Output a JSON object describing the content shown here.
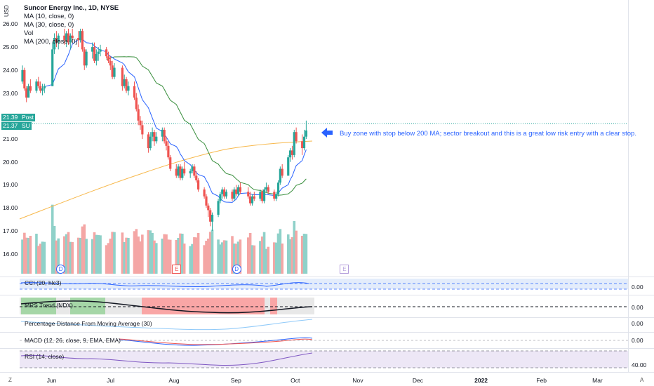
{
  "legend": {
    "title": "Suncor Energy Inc., 1D, NYSE",
    "lines": [
      "MA (10, close, 0)",
      "MA (30, close, 0)",
      "Vol",
      "MA (200, close, 0)"
    ]
  },
  "currency_label": "USD",
  "price_axis_ticks": [
    "26.00",
    "25.00",
    "24.00",
    "23.00",
    "22.00",
    "21.00",
    "20.00",
    "19.00",
    "18.00",
    "17.00",
    "16.00"
  ],
  "price_tags": [
    {
      "value": "21.39",
      "label": "Post",
      "color": "#26a69a"
    },
    {
      "value": "21.37",
      "label": "SU",
      "color": "#26a69a"
    }
  ],
  "time_axis_ticks": [
    "Jun",
    "Jul",
    "Aug",
    "Sep",
    "Oct",
    "Nov",
    "Dec",
    "2022",
    "Feb",
    "Mar"
  ],
  "event_markers": [
    "D",
    "E",
    "D",
    "E"
  ],
  "annotation": "Buy zone with stop below 200 MA; sector breakout and this is a great low risk entry with a clear stop.",
  "indicator_panes": [
    {
      "title": "CCI (20, hlc3)",
      "value": "0.00"
    },
    {
      "title": "MRS Trend (NDX)",
      "value": "0.00"
    },
    {
      "title": "Percentage Distance From Moving Average (30)",
      "value": "0.00"
    },
    {
      "title": "MACD (12, 26, close, 9, EMA, EMA)",
      "value": "0.00"
    },
    {
      "title": "RSI (14, close)",
      "value": "40.00"
    }
  ],
  "footer": {
    "left": "Z",
    "right": "A"
  },
  "colors": {
    "up": "#26a69a",
    "down": "#ef5350",
    "ma10": "#2962ff",
    "ma30": "#388e3c",
    "ma200": "#f7b84b",
    "accent": "#2962ff"
  },
  "chart_data": {
    "type": "candlestick",
    "title": "Suncor Energy Inc., 1D, NYSE",
    "ylim": [
      15.5,
      26.5
    ],
    "x_range": [
      "2021-05-17",
      "2022-03-15"
    ],
    "series": [
      {
        "name": "Price",
        "ohlc": [
          [
            "2021-05-17",
            23.5,
            24.2,
            23.4,
            24.0
          ],
          [
            "2021-05-18",
            24.0,
            24.1,
            23.1,
            23.2
          ],
          [
            "2021-05-19",
            23.2,
            23.3,
            22.6,
            22.8
          ],
          [
            "2021-05-20",
            22.8,
            23.4,
            22.8,
            23.3
          ],
          [
            "2021-05-21",
            23.3,
            23.6,
            23.0,
            23.1
          ],
          [
            "2021-05-24",
            23.1,
            23.6,
            23.0,
            23.5
          ],
          [
            "2021-05-25",
            23.5,
            23.7,
            23.2,
            23.3
          ],
          [
            "2021-05-26",
            23.3,
            23.5,
            23.0,
            23.1
          ],
          [
            "2021-05-27",
            23.1,
            23.4,
            22.9,
            23.2
          ],
          [
            "2021-05-28",
            23.2,
            23.4,
            23.0,
            23.3
          ],
          [
            "2021-06-01",
            23.3,
            25.2,
            23.3,
            24.9
          ],
          [
            "2021-06-02",
            24.9,
            25.6,
            24.7,
            25.4
          ],
          [
            "2021-06-03",
            25.4,
            25.7,
            25.0,
            25.2
          ],
          [
            "2021-06-04",
            25.2,
            25.6,
            24.9,
            25.5
          ],
          [
            "2021-06-07",
            25.5,
            25.8,
            25.1,
            25.3
          ],
          [
            "2021-06-08",
            25.3,
            25.7,
            25.0,
            25.6
          ],
          [
            "2021-06-09",
            25.6,
            25.8,
            25.1,
            25.2
          ],
          [
            "2021-06-10",
            25.2,
            25.6,
            24.9,
            25.5
          ],
          [
            "2021-06-11",
            25.5,
            25.8,
            25.2,
            25.4
          ],
          [
            "2021-06-14",
            25.4,
            25.7,
            25.0,
            25.3
          ],
          [
            "2021-06-15",
            25.3,
            25.8,
            25.2,
            25.7
          ],
          [
            "2021-06-16",
            25.7,
            25.8,
            24.8,
            24.9
          ],
          [
            "2021-06-17",
            24.9,
            25.0,
            24.0,
            24.2
          ],
          [
            "2021-06-18",
            24.2,
            24.9,
            24.1,
            24.8
          ],
          [
            "2021-06-21",
            24.8,
            25.2,
            24.5,
            25.0
          ],
          [
            "2021-06-22",
            25.0,
            25.2,
            24.3,
            24.4
          ],
          [
            "2021-06-23",
            24.4,
            24.9,
            24.2,
            24.7
          ],
          [
            "2021-06-24",
            24.7,
            25.0,
            24.4,
            24.8
          ],
          [
            "2021-06-25",
            24.8,
            25.1,
            24.6,
            24.9
          ],
          [
            "2021-06-28",
            24.9,
            25.0,
            24.5,
            24.6
          ],
          [
            "2021-06-29",
            24.6,
            24.8,
            24.3,
            24.4
          ],
          [
            "2021-06-30",
            24.4,
            24.6,
            24.0,
            24.2
          ],
          [
            "2021-07-01",
            24.2,
            24.4,
            23.6,
            23.7
          ],
          [
            "2021-07-02",
            23.7,
            24.3,
            23.6,
            24.1
          ],
          [
            "2021-07-06",
            24.1,
            24.2,
            23.1,
            23.3
          ],
          [
            "2021-07-07",
            23.3,
            23.8,
            23.2,
            23.6
          ],
          [
            "2021-07-08",
            23.6,
            23.7,
            23.0,
            23.1
          ],
          [
            "2021-07-09",
            23.1,
            23.5,
            22.9,
            23.3
          ],
          [
            "2021-07-12",
            23.3,
            23.5,
            22.7,
            22.8
          ],
          [
            "2021-07-13",
            22.8,
            23.0,
            22.2,
            22.3
          ],
          [
            "2021-07-14",
            22.3,
            22.5,
            21.6,
            21.8
          ],
          [
            "2021-07-15",
            21.8,
            22.0,
            21.4,
            21.6
          ],
          [
            "2021-07-16",
            21.6,
            21.8,
            21.0,
            21.2
          ],
          [
            "2021-07-19",
            21.2,
            21.3,
            20.4,
            20.6
          ],
          [
            "2021-07-20",
            20.6,
            21.3,
            20.5,
            21.1
          ],
          [
            "2021-07-21",
            21.1,
            21.5,
            20.9,
            21.3
          ],
          [
            "2021-07-22",
            21.3,
            21.4,
            20.7,
            20.9
          ],
          [
            "2021-07-23",
            20.9,
            21.3,
            20.8,
            21.1
          ],
          [
            "2021-07-26",
            21.1,
            21.5,
            20.9,
            21.4
          ],
          [
            "2021-07-27",
            21.4,
            21.5,
            20.8,
            20.9
          ],
          [
            "2021-07-28",
            20.9,
            21.1,
            20.5,
            20.7
          ],
          [
            "2021-07-29",
            20.7,
            20.9,
            20.1,
            20.2
          ],
          [
            "2021-07-30",
            20.2,
            20.3,
            19.6,
            19.7
          ],
          [
            "2021-08-02",
            19.7,
            19.9,
            19.3,
            19.4
          ],
          [
            "2021-08-03",
            19.4,
            19.9,
            19.3,
            19.8
          ],
          [
            "2021-08-04",
            19.8,
            19.9,
            19.2,
            19.3
          ],
          [
            "2021-08-05",
            19.3,
            19.8,
            19.2,
            19.7
          ],
          [
            "2021-08-06",
            19.7,
            20.0,
            19.4,
            19.5
          ],
          [
            "2021-08-09",
            19.5,
            19.7,
            19.3,
            19.6
          ],
          [
            "2021-08-10",
            19.6,
            19.9,
            19.5,
            19.8
          ],
          [
            "2021-08-11",
            19.8,
            19.9,
            19.3,
            19.4
          ],
          [
            "2021-08-12",
            19.4,
            19.6,
            19.1,
            19.2
          ],
          [
            "2021-08-13",
            19.2,
            19.3,
            18.7,
            18.8
          ],
          [
            "2021-08-16",
            18.8,
            18.9,
            18.4,
            18.5
          ],
          [
            "2021-08-17",
            18.5,
            18.6,
            18.0,
            18.1
          ],
          [
            "2021-08-18",
            18.1,
            18.2,
            17.6,
            17.9
          ],
          [
            "2021-08-19",
            17.9,
            18.0,
            17.2,
            17.4
          ],
          [
            "2021-08-20",
            17.4,
            17.8,
            17.0,
            17.7
          ],
          [
            "2021-08-23",
            17.7,
            18.4,
            17.6,
            18.3
          ],
          [
            "2021-08-24",
            18.3,
            18.7,
            18.2,
            18.6
          ],
          [
            "2021-08-25",
            18.6,
            18.9,
            18.4,
            18.8
          ],
          [
            "2021-08-26",
            18.8,
            18.9,
            18.4,
            18.5
          ],
          [
            "2021-08-27",
            18.5,
            18.8,
            18.4,
            18.7
          ],
          [
            "2021-08-30",
            18.7,
            18.8,
            18.3,
            18.4
          ],
          [
            "2021-08-31",
            18.4,
            18.9,
            18.3,
            18.8
          ],
          [
            "2021-09-01",
            18.8,
            19.0,
            18.5,
            18.6
          ],
          [
            "2021-09-02",
            18.6,
            19.0,
            18.5,
            18.9
          ],
          [
            "2021-09-03",
            18.9,
            19.1,
            18.6,
            18.7
          ],
          [
            "2021-09-07",
            18.7,
            18.9,
            18.4,
            18.5
          ],
          [
            "2021-09-08",
            18.5,
            18.7,
            18.1,
            18.2
          ],
          [
            "2021-09-09",
            18.2,
            18.6,
            18.1,
            18.5
          ],
          [
            "2021-09-10",
            18.5,
            18.7,
            18.3,
            18.4
          ],
          [
            "2021-09-13",
            18.4,
            18.8,
            18.3,
            18.7
          ],
          [
            "2021-09-14",
            18.7,
            18.8,
            18.2,
            18.3
          ],
          [
            "2021-09-15",
            18.3,
            18.9,
            18.2,
            18.8
          ],
          [
            "2021-09-16",
            18.8,
            19.1,
            18.7,
            18.9
          ],
          [
            "2021-09-17",
            18.9,
            19.0,
            18.6,
            18.7
          ],
          [
            "2021-09-20",
            18.7,
            18.8,
            18.3,
            18.4
          ],
          [
            "2021-09-21",
            18.4,
            18.7,
            18.3,
            18.6
          ],
          [
            "2021-09-22",
            18.6,
            19.2,
            18.5,
            19.1
          ],
          [
            "2021-09-23",
            19.1,
            19.8,
            19.0,
            19.7
          ],
          [
            "2021-09-24",
            19.7,
            19.9,
            19.3,
            19.4
          ],
          [
            "2021-09-27",
            19.4,
            20.3,
            19.4,
            20.2
          ],
          [
            "2021-09-28",
            20.2,
            20.6,
            20.0,
            20.5
          ],
          [
            "2021-09-29",
            20.5,
            20.7,
            20.1,
            20.3
          ],
          [
            "2021-09-30",
            20.3,
            21.4,
            20.2,
            21.3
          ],
          [
            "2021-10-01",
            21.3,
            21.5,
            20.8,
            20.9
          ],
          [
            "2021-10-04",
            20.9,
            21.2,
            20.3,
            20.6
          ],
          [
            "2021-10-05",
            20.6,
            21.4,
            20.5,
            21.1
          ],
          [
            "2021-10-06",
            21.1,
            21.8,
            21.0,
            21.37
          ]
        ]
      },
      {
        "name": "MA (10, close, 0)"
      },
      {
        "name": "MA (30, close, 0)"
      },
      {
        "name": "MA (200, close, 0)"
      },
      {
        "name": "Vol"
      }
    ]
  }
}
